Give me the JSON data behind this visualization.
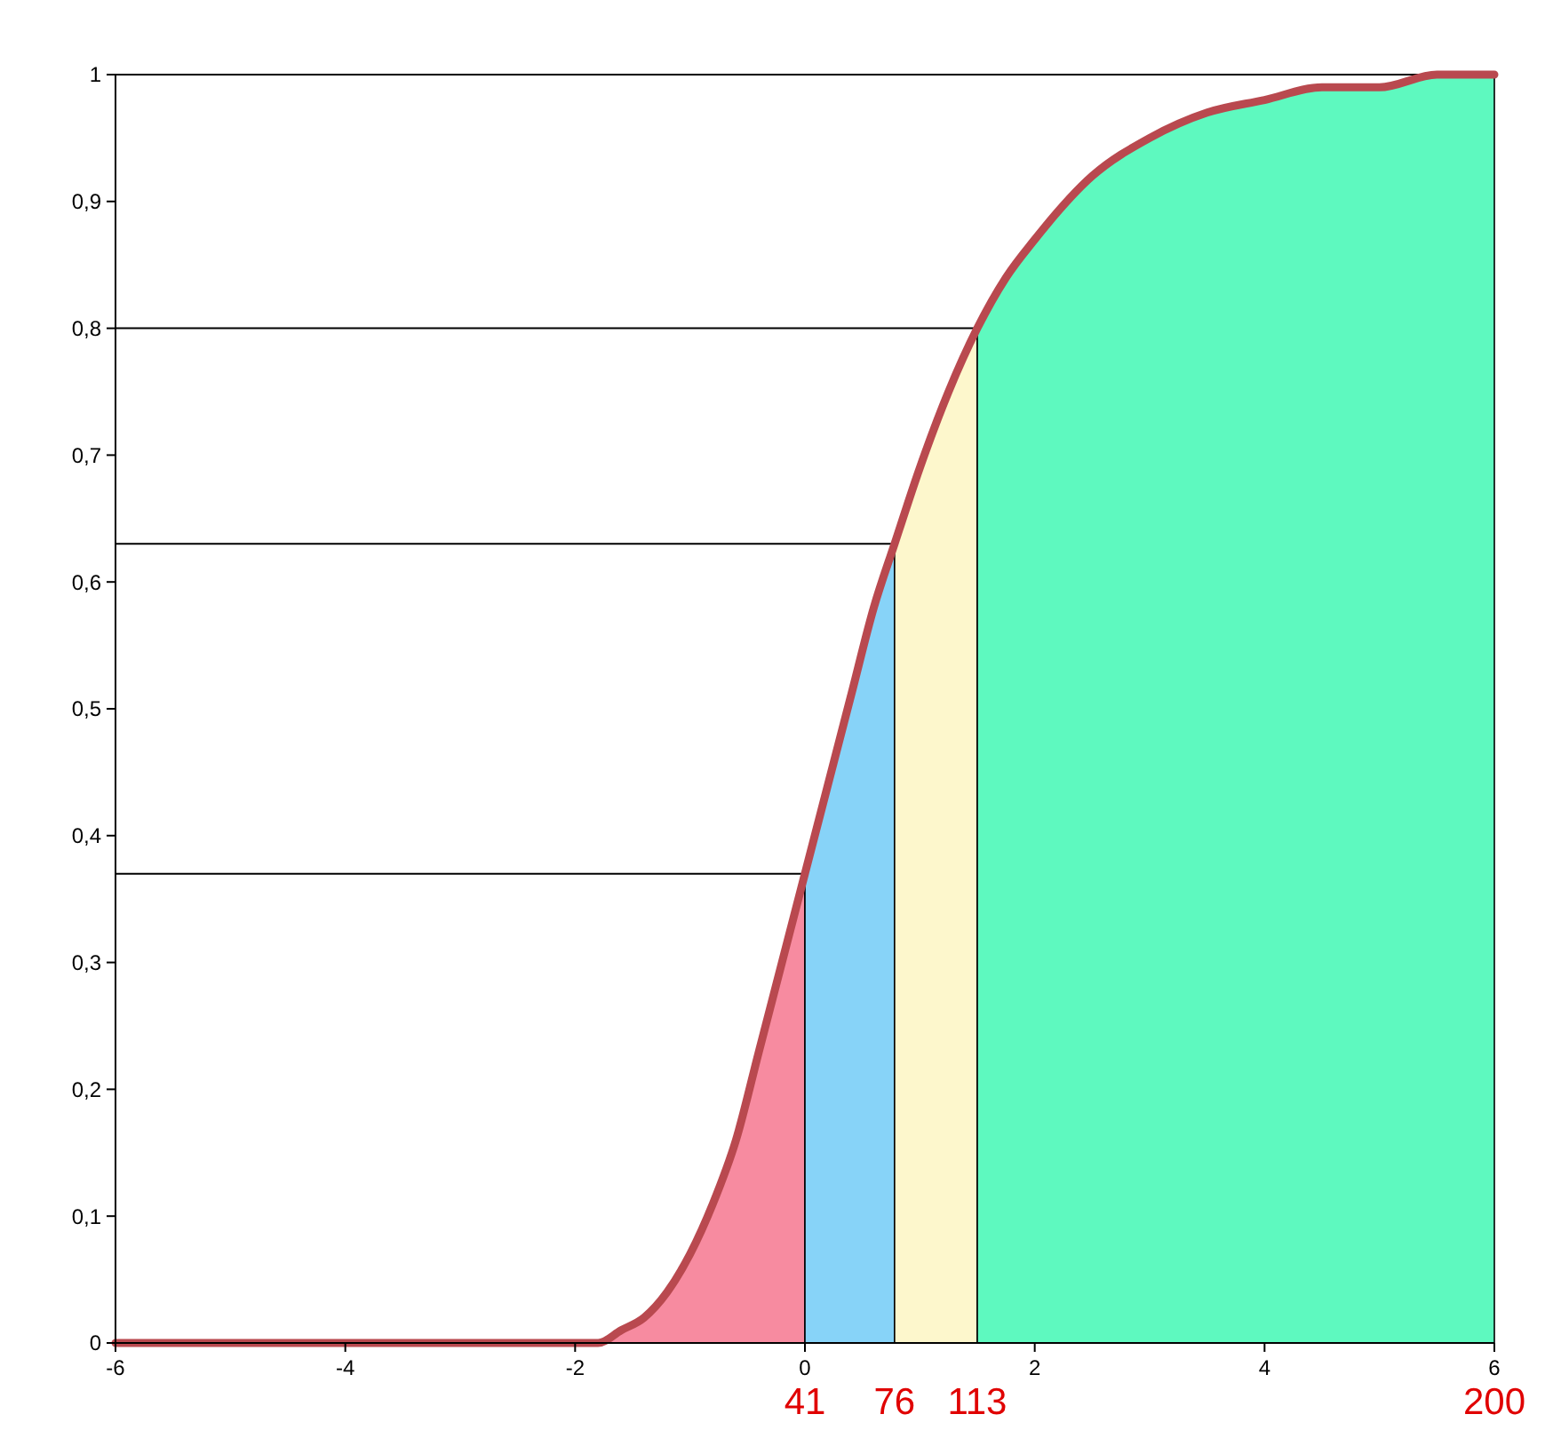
{
  "chart_data": {
    "type": "line",
    "xlim": [
      -6,
      6
    ],
    "xticks": [
      -6,
      -4,
      -2,
      0,
      2,
      4,
      6
    ],
    "ylim": [
      0,
      1
    ],
    "yticks": [
      0,
      {
        "value": 0.1,
        "label": "0,1"
      },
      {
        "value": 0.2,
        "label": "0,2"
      },
      {
        "value": 0.3,
        "label": "0,3"
      },
      {
        "value": 0.4,
        "label": "0,4"
      },
      {
        "value": 0.5,
        "label": "0,5"
      },
      {
        "value": 0.6,
        "label": "0,6"
      },
      {
        "value": 0.7,
        "label": "0,7"
      },
      {
        "value": 0.8,
        "label": "0,8"
      },
      {
        "value": 0.9,
        "label": "0,9"
      },
      1
    ],
    "grid": false,
    "ref_lines": [
      {
        "axis": "y",
        "value": 1,
        "color": "#000000"
      }
    ],
    "series": [
      {
        "type": "area",
        "color": "#f78ba0",
        "x": [
          -6,
          -3,
          -2,
          -1.8,
          -1.6,
          -1.4,
          -1.2,
          -1,
          -0.8,
          -0.6,
          -0.4,
          -0.2,
          0
        ],
        "values": [
          0,
          0,
          0,
          0,
          0.01,
          0.02,
          0.04,
          0.07,
          0.11,
          0.16,
          0.23,
          0.3,
          0.37
        ]
      },
      {
        "type": "area",
        "color": "#87d3f8",
        "x": [
          0,
          0.2,
          0.4,
          0.6,
          0.78
        ],
        "values": [
          0.37,
          0.44,
          0.51,
          0.58,
          0.63
        ]
      },
      {
        "type": "area",
        "color": "#fdf7cc",
        "x": [
          0.78,
          1,
          1.25,
          1.5
        ],
        "values": [
          0.63,
          0.69,
          0.75,
          0.8
        ]
      },
      {
        "type": "area",
        "color": "#5ef9bf",
        "x": [
          1.5,
          1.75,
          2,
          2.5,
          3,
          3.5,
          4,
          4.5,
          5,
          5.5,
          6
        ],
        "values": [
          0.8,
          0.84,
          0.87,
          0.92,
          0.95,
          0.97,
          0.98,
          0.99,
          0.99,
          1,
          1
        ]
      },
      {
        "color": "#000000",
        "x": [
          -6,
          0
        ],
        "values": [
          0.37,
          0.37
        ]
      },
      {
        "color": "#000000",
        "x": [
          -6,
          0.78
        ],
        "values": [
          0.63,
          0.63
        ]
      },
      {
        "color": "#000000",
        "x": [
          -6,
          1.5
        ],
        "values": [
          0.8,
          0.8
        ]
      },
      {
        "color": "#b9494f",
        "x": [
          -6,
          -3,
          -2,
          -1.8,
          -1.6,
          -1.4,
          -1.2,
          -1,
          -0.8,
          -0.6,
          -0.4,
          -0.2,
          0,
          0.2,
          0.4,
          0.6,
          0.78,
          1,
          1.25,
          1.5,
          1.75,
          2,
          2.5,
          3,
          3.5,
          4,
          4.5,
          5,
          5.5,
          6
        ],
        "values": [
          0,
          0,
          0,
          0,
          0.01,
          0.02,
          0.04,
          0.07,
          0.11,
          0.16,
          0.23,
          0.3,
          0.37,
          0.44,
          0.51,
          0.58,
          0.63,
          0.69,
          0.75,
          0.8,
          0.84,
          0.87,
          0.92,
          0.95,
          0.97,
          0.98,
          0.99,
          0.99,
          1,
          1
        ]
      }
    ],
    "annotations": [
      {
        "text": "41",
        "x": 0,
        "y": 0
      },
      {
        "text": "76",
        "x": 0.78,
        "y": 0
      },
      {
        "text": "113",
        "x": 1.5,
        "y": 0
      },
      {
        "text": "200",
        "x": 6,
        "y": 0
      }
    ]
  }
}
